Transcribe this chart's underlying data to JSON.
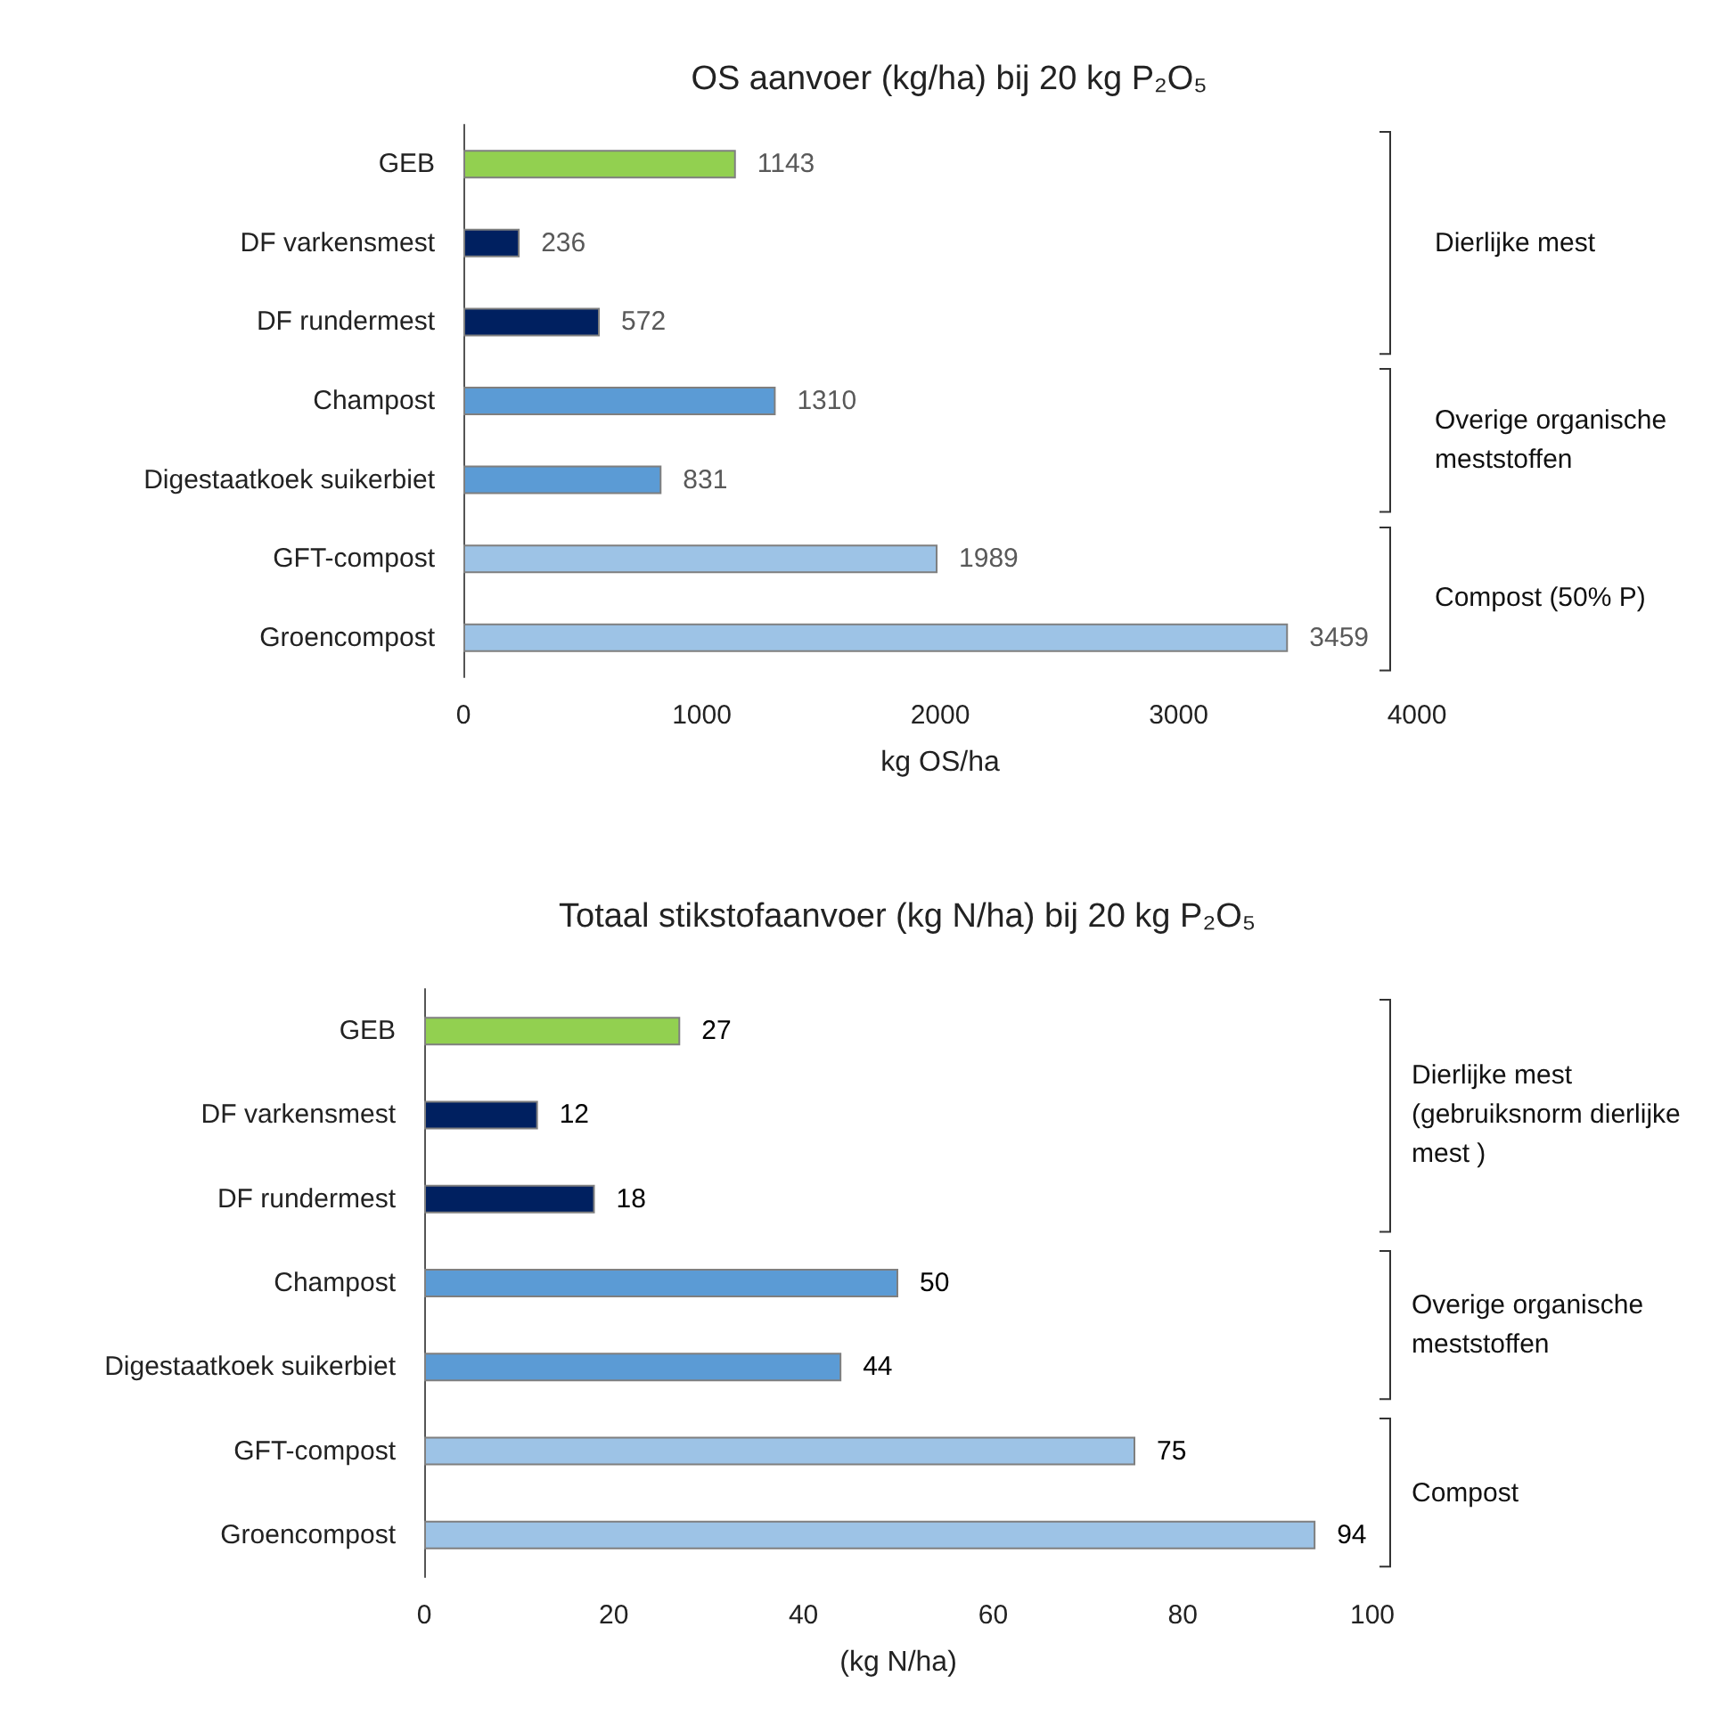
{
  "chart_data": [
    {
      "type": "bar",
      "orientation": "horizontal",
      "title": "OS aanvoer (kg/ha) bij 20 kg P₂O₅",
      "xlabel": "kg OS/ha",
      "categories": [
        "GEB",
        "DF varkensmest",
        "DF rundermest",
        "Champost",
        "Digestaatkoek suikerbiet",
        "GFT-compost",
        "Groencompost"
      ],
      "values": [
        1143,
        236,
        572,
        1310,
        831,
        1989,
        3459
      ],
      "colors": [
        "#92d050",
        "#002060",
        "#002060",
        "#5b9bd5",
        "#5b9bd5",
        "#9dc3e6",
        "#9dc3e6"
      ],
      "xlim": [
        0,
        4000
      ],
      "xticks": [
        0,
        1000,
        2000,
        3000,
        4000
      ],
      "data_labels": true,
      "annotations": [
        "Dierlijke mest",
        "Overige organische meststoffen",
        "Compost (50% P)"
      ]
    },
    {
      "type": "bar",
      "orientation": "horizontal",
      "title": "Totaal stikstofaanvoer (kg N/ha) bij 20 kg P₂O₅",
      "xlabel": "(kg N/ha)",
      "categories": [
        "GEB",
        "DF varkensmest",
        "DF rundermest",
        "Champost",
        "Digestaatkoek suikerbiet",
        "GFT-compost",
        "Groencompost"
      ],
      "values": [
        27,
        12,
        18,
        50,
        44,
        75,
        94
      ],
      "colors": [
        "#92d050",
        "#002060",
        "#002060",
        "#5b9bd5",
        "#5b9bd5",
        "#9dc3e6",
        "#9dc3e6"
      ],
      "xlim": [
        0,
        100
      ],
      "xticks": [
        0,
        20,
        40,
        60,
        80,
        100
      ],
      "data_labels": true,
      "annotations": [
        "Dierlijke mest (gebruiksnorm dierlijke mest )",
        "Overige organische meststoffen",
        "Compost"
      ]
    }
  ]
}
